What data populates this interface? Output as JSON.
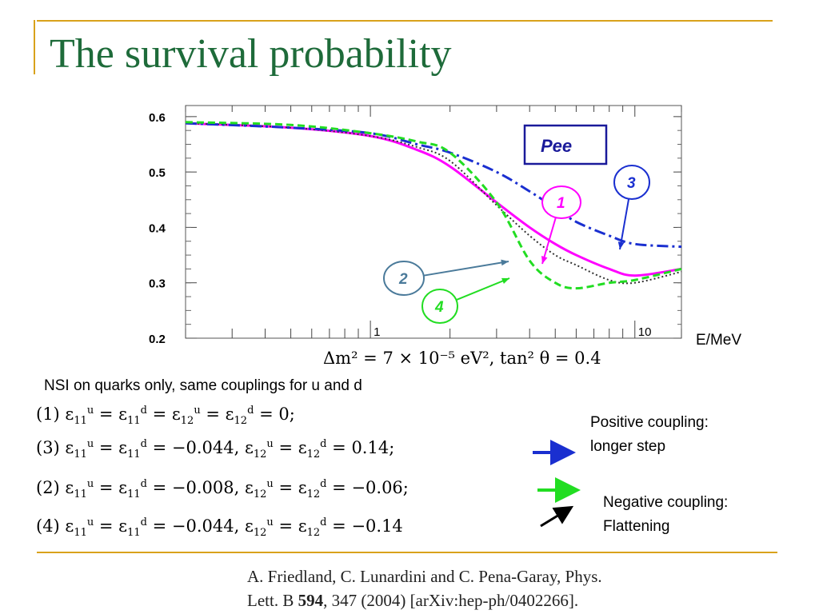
{
  "slide": {
    "title": "The survival probability",
    "accent_color": "#d9a21b",
    "title_color": "#1e6b3a"
  },
  "chart_data": {
    "type": "line",
    "title": "",
    "label_box": "Pee",
    "xlabel": "E/MeV",
    "ylabel": "",
    "x_scale": "log",
    "xlim": [
      0.2,
      15
    ],
    "ylim": [
      0.2,
      0.62
    ],
    "yticks": [
      0.2,
      0.3,
      0.4,
      0.5,
      0.6
    ],
    "ytick_labels": [
      "0.2",
      "0.3",
      "0.4",
      "0.5",
      "0.6"
    ],
    "xtick_labels": [
      "1",
      "10"
    ],
    "xtick_values": [
      1,
      10
    ],
    "series": [
      {
        "id": "1",
        "color": "#ff00ff",
        "style": "solid",
        "x": [
          0.2,
          0.5,
          1,
          1.5,
          2,
          3,
          4,
          5,
          6,
          8,
          10,
          15
        ],
        "y": [
          0.588,
          0.58,
          0.565,
          0.54,
          0.51,
          0.445,
          0.4,
          0.37,
          0.35,
          0.325,
          0.313,
          0.325
        ]
      },
      {
        "id": "2",
        "color": "#333333",
        "style": "dotted",
        "x": [
          0.2,
          0.5,
          1,
          1.5,
          2,
          3,
          4,
          5,
          6,
          8,
          10,
          15
        ],
        "y": [
          0.588,
          0.58,
          0.565,
          0.545,
          0.52,
          0.44,
          0.385,
          0.35,
          0.332,
          0.305,
          0.3,
          0.32
        ]
      },
      {
        "id": "3",
        "color": "#1a2fd0",
        "style": "dashdot",
        "x": [
          0.2,
          0.5,
          1,
          1.5,
          2,
          3,
          4,
          5,
          6,
          8,
          10,
          15
        ],
        "y": [
          0.588,
          0.58,
          0.57,
          0.55,
          0.535,
          0.5,
          0.465,
          0.435,
          0.41,
          0.385,
          0.37,
          0.365
        ]
      },
      {
        "id": "4",
        "color": "#22dd22",
        "style": "dashed",
        "x": [
          0.2,
          0.5,
          1,
          1.5,
          2,
          3,
          4,
          5,
          6,
          8,
          10,
          15
        ],
        "y": [
          0.59,
          0.585,
          0.57,
          0.555,
          0.535,
          0.445,
          0.34,
          0.3,
          0.29,
          0.3,
          0.305,
          0.325
        ]
      }
    ],
    "callouts": [
      {
        "label": "1",
        "color": "#ff00ff"
      },
      {
        "label": "2",
        "color": "#4a7a9a"
      },
      {
        "label": "3",
        "color": "#1a2fd0"
      },
      {
        "label": "4",
        "color": "#22dd22"
      }
    ]
  },
  "formula": "Δm² = 7 × 10⁻⁵ eV², tan² θ = 0.4",
  "nsi_caption": "NSI on quarks only, same couplings for u and d",
  "cases": [
    {
      "tag": "(1)",
      "eq1": "=",
      "v1": "",
      "eq2": "=",
      "eq3": "=",
      "v2": "= 0;"
    },
    {
      "tag": "(3)",
      "v1": "= −0.044,",
      "v2": "= 0.14;"
    },
    {
      "tag": "(2)",
      "v1": "= −0.008,",
      "v2": "= −0.06;"
    },
    {
      "tag": "(4)",
      "v1": "= −0.044,",
      "v2": "= −0.14"
    }
  ],
  "notes": {
    "positive": [
      "Positive coupling:",
      "longer step"
    ],
    "negative": [
      "Negative coupling:",
      "Flattening"
    ]
  },
  "reference": {
    "line1": "A. Friedland, C. Lunardini and C. Pena-Garay, Phys.",
    "line2_pre": "Lett. B ",
    "line2_bold": "594",
    "line2_post": ", 347 (2004) [arXiv:hep-ph/0402266]."
  }
}
